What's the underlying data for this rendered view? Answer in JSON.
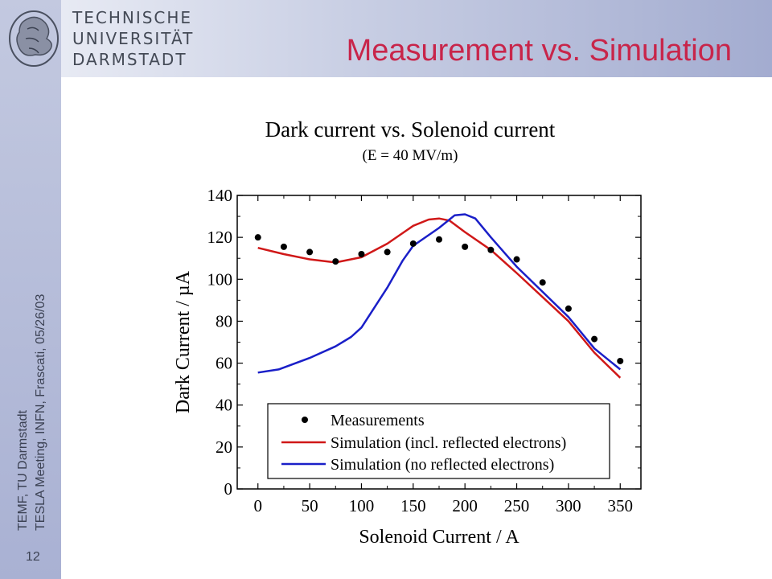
{
  "header": {
    "university_lines": [
      "TECHNISCHE",
      "UNIVERSITÄT",
      "DARMSTADT"
    ],
    "slide_title": "Measurement vs. Simulation"
  },
  "sidebar": {
    "footer_line1": "TEMF, TU Darmstadt",
    "footer_line2": "TESLA Meeting, INFN, Frascati, 05/26/03",
    "page_number": "12"
  },
  "colors": {
    "title": "#c8254a",
    "sim_reflected": "#d01818",
    "sim_no_reflected": "#1a1fc8",
    "measurement": "#000000"
  },
  "chart_data": {
    "type": "line",
    "title": "Dark current vs. Solenoid current",
    "subtitle": "(E = 40 MV/m)",
    "xlabel": "Solenoid Current / A",
    "ylabel": "Dark Current / µA",
    "xlim": [
      -20,
      370
    ],
    "ylim": [
      0,
      140
    ],
    "xticks": [
      0,
      50,
      100,
      150,
      200,
      250,
      300,
      350
    ],
    "yticks": [
      0,
      20,
      40,
      60,
      80,
      100,
      120,
      140
    ],
    "legend_placement": "bottom-right",
    "series": [
      {
        "name": "Measurements",
        "kind": "scatter",
        "x": [
          0,
          25,
          50,
          75,
          100,
          125,
          150,
          175,
          200,
          225,
          250,
          275,
          300,
          325,
          350
        ],
        "y": [
          120,
          115.5,
          113,
          108.5,
          112,
          113,
          117,
          119,
          115.5,
          114,
          109.5,
          98.5,
          86,
          71.5,
          61
        ]
      },
      {
        "name": "Simulation (incl. reflected electrons)",
        "kind": "line",
        "x": [
          0,
          25,
          50,
          75,
          100,
          125,
          150,
          165,
          175,
          185,
          200,
          225,
          250,
          275,
          300,
          325,
          350
        ],
        "y": [
          115,
          112,
          109.5,
          108,
          110.5,
          117,
          125.5,
          128.5,
          129,
          128,
          122.5,
          114,
          103,
          91.5,
          80,
          65,
          53
        ]
      },
      {
        "name": "Simulation (no reflected electrons)",
        "kind": "line",
        "x": [
          0,
          20,
          50,
          75,
          90,
          100,
          125,
          140,
          150,
          175,
          190,
          200,
          210,
          225,
          250,
          275,
          300,
          325,
          350
        ],
        "y": [
          55.5,
          57,
          62.5,
          68,
          72.5,
          77,
          96,
          109,
          116,
          124.5,
          130.5,
          131,
          129,
          120,
          106,
          94,
          82,
          67,
          57
        ]
      }
    ]
  }
}
